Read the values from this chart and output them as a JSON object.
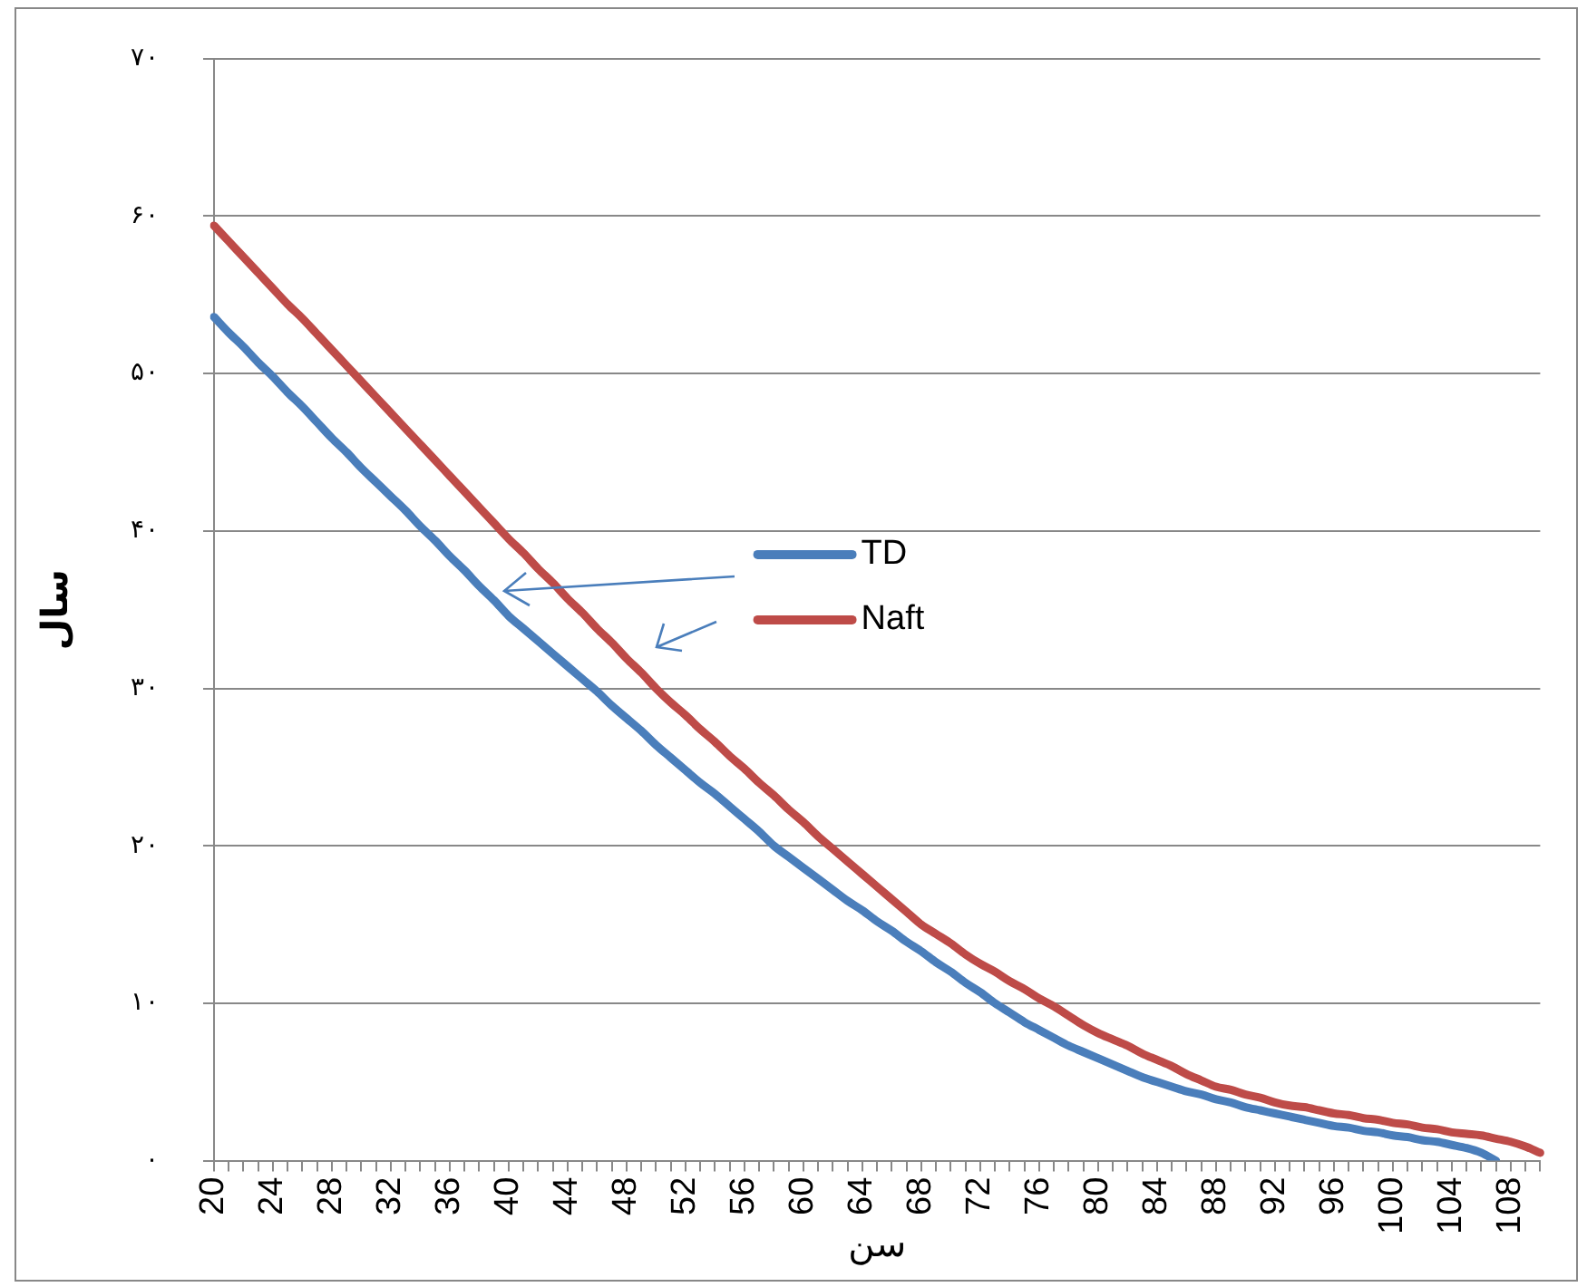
{
  "chart_data": {
    "type": "line",
    "xlabel": "سن",
    "ylabel": "سال",
    "categories": [
      "20",
      null,
      null,
      null,
      "24",
      null,
      null,
      null,
      "28",
      null,
      null,
      null,
      "32",
      null,
      null,
      null,
      "36",
      null,
      null,
      null,
      "40",
      null,
      null,
      null,
      "44",
      null,
      null,
      null,
      "48",
      null,
      null,
      null,
      "52",
      null,
      null,
      null,
      "56",
      null,
      null,
      null,
      "60",
      null,
      null,
      null,
      "64",
      null,
      null,
      null,
      "68",
      null,
      null,
      null,
      "72",
      null,
      null,
      null,
      "76",
      null,
      null,
      null,
      "80",
      null,
      null,
      null,
      "84",
      null,
      null,
      null,
      "88",
      null,
      null,
      null,
      "92",
      null,
      null,
      null,
      "96",
      null,
      null,
      null,
      "100",
      null,
      null,
      null,
      "104",
      null,
      null,
      null,
      "108",
      null,
      null
    ],
    "series": [
      {
        "name": "TD",
        "color": "#4a7ebb",
        "values": [
          53.6,
          52.6,
          51.7,
          50.7,
          49.8,
          48.8,
          47.9,
          46.9,
          45.9,
          45.0,
          44.0,
          43.1,
          42.2,
          41.3,
          40.3,
          39.4,
          38.4,
          37.5,
          36.5,
          35.6,
          34.6,
          33.8,
          33.0,
          32.2,
          31.4,
          30.6,
          29.8,
          28.9,
          28.1,
          27.3,
          26.4,
          25.6,
          24.8,
          24.0,
          23.3,
          22.5,
          21.7,
          20.9,
          20.0,
          19.3,
          18.6,
          17.9,
          17.2,
          16.5,
          15.9,
          15.2,
          14.6,
          13.9,
          13.3,
          12.6,
          12.0,
          11.3,
          10.7,
          10.0,
          9.4,
          8.8,
          8.3,
          7.8,
          7.3,
          6.9,
          6.5,
          6.1,
          5.7,
          5.3,
          5.0,
          4.7,
          4.4,
          4.2,
          3.9,
          3.7,
          3.4,
          3.2,
          3.0,
          2.8,
          2.6,
          2.4,
          2.2,
          2.1,
          1.9,
          1.8,
          1.6,
          1.5,
          1.3,
          1.2,
          1.0,
          0.8,
          0.5,
          0,
          null,
          null,
          null
        ]
      },
      {
        "name": "Naft",
        "color": "#be4b48",
        "values": [
          59.4,
          58.4,
          57.4,
          56.4,
          55.4,
          54.4,
          53.5,
          52.5,
          51.5,
          50.5,
          49.5,
          48.5,
          47.5,
          46.5,
          45.5,
          44.5,
          43.5,
          42.5,
          41.5,
          40.5,
          39.5,
          38.6,
          37.6,
          36.7,
          35.7,
          34.8,
          33.8,
          32.9,
          31.9,
          31.0,
          30.0,
          29.1,
          28.3,
          27.4,
          26.6,
          25.7,
          24.9,
          24.0,
          23.2,
          22.3,
          21.5,
          20.6,
          19.8,
          19.0,
          18.2,
          17.4,
          16.6,
          15.8,
          15.0,
          14.4,
          13.8,
          13.1,
          12.5,
          12.0,
          11.4,
          10.9,
          10.3,
          9.8,
          9.2,
          8.6,
          8.1,
          7.7,
          7.3,
          6.8,
          6.4,
          6.0,
          5.5,
          5.1,
          4.7,
          4.5,
          4.2,
          4.0,
          3.7,
          3.5,
          3.4,
          3.2,
          3.0,
          2.9,
          2.7,
          2.6,
          2.4,
          2.3,
          2.1,
          2.0,
          1.8,
          1.7,
          1.6,
          1.4,
          1.2,
          0.9,
          0.5
        ]
      }
    ],
    "ylim": [
      0,
      70
    ],
    "yticks": [
      {
        "value": 0,
        "label": "۰"
      },
      {
        "value": 10,
        "label": "۱۰"
      },
      {
        "value": 20,
        "label": "۲۰"
      },
      {
        "value": 30,
        "label": "۳۰"
      },
      {
        "value": 40,
        "label": "۴۰"
      },
      {
        "value": 50,
        "label": "۵۰"
      },
      {
        "value": 60,
        "label": "۶۰"
      },
      {
        "value": 70,
        "label": "۷۰"
      }
    ],
    "grid": "y",
    "legend": "center",
    "marker": "none",
    "line_style": "solid"
  }
}
